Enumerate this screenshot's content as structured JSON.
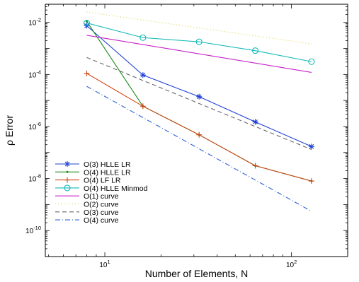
{
  "chart_data": {
    "type": "line",
    "xlabel": "Number of Elements, N",
    "ylabel": "ρ Error",
    "xscale": "log",
    "yscale": "log",
    "xlim": [
      4.8,
      200
    ],
    "ylim": [
      1e-11,
      0.05
    ],
    "x_ticks": [
      {
        "value": 10,
        "base": "10",
        "exp": "1"
      },
      {
        "value": 100,
        "base": "10",
        "exp": "2"
      }
    ],
    "y_ticks": [
      {
        "value": 1e-10,
        "base": "10",
        "exp": "-10"
      },
      {
        "value": 1e-08,
        "base": "10",
        "exp": "-8"
      },
      {
        "value": 1e-06,
        "base": "10",
        "exp": "-6"
      },
      {
        "value": 0.0001,
        "base": "10",
        "exp": "-4"
      },
      {
        "value": 0.01,
        "base": "10",
        "exp": "-2"
      }
    ],
    "legend_position": "bottom-left",
    "grid": false,
    "series": [
      {
        "name": "O(3) HLLE LR",
        "color": "#1f3fd6",
        "dash": "",
        "marker": "star",
        "x": [
          8,
          16,
          32,
          64,
          128
        ],
        "y": [
          0.0075,
          9.5e-05,
          1.4e-05,
          1.5e-06,
          1.7e-07
        ]
      },
      {
        "name": "O(4) HLLE LR",
        "color": "#1a8a1a",
        "dash": "",
        "marker": "dot",
        "x": [
          8,
          16,
          32,
          64,
          128
        ],
        "y": [
          0.011,
          6e-06,
          4.8e-07,
          3.1e-08,
          8e-09
        ]
      },
      {
        "name": "O(4) LF LR",
        "color": "#d24412",
        "dash": "",
        "marker": "plus",
        "x": [
          8,
          16,
          32,
          64,
          128
        ],
        "y": [
          0.00011,
          6e-06,
          4.8e-07,
          3.1e-08,
          8e-09
        ]
      },
      {
        "name": "O(4) HLLE Minmod",
        "color": "#14b8b8",
        "dash": "",
        "marker": "circle",
        "x": [
          8,
          16,
          32,
          64,
          128
        ],
        "y": [
          0.0095,
          0.0026,
          0.0018,
          0.00082,
          0.00031
        ]
      },
      {
        "name": "O(1) curve",
        "color": "#c620c6",
        "dash": "",
        "marker": "none",
        "x": [
          8,
          128
        ],
        "y": [
          0.0032,
          0.00012
        ]
      },
      {
        "name": "O(2) curve",
        "color": "#dcd24a",
        "dash": "1,3",
        "marker": "none",
        "x": [
          8,
          128
        ],
        "y": [
          0.025,
          0.0015
        ]
      },
      {
        "name": "O(3) curve",
        "color": "#666666",
        "dash": "6,4",
        "marker": "none",
        "x": [
          8,
          128
        ],
        "y": [
          0.00045,
          1.3e-07
        ]
      },
      {
        "name": "O(4) curve",
        "color": "#2f5fd8",
        "dash": "7,3,1,3",
        "marker": "none",
        "x": [
          8,
          128
        ],
        "y": [
          3.5e-05,
          5.5e-10
        ]
      }
    ]
  }
}
